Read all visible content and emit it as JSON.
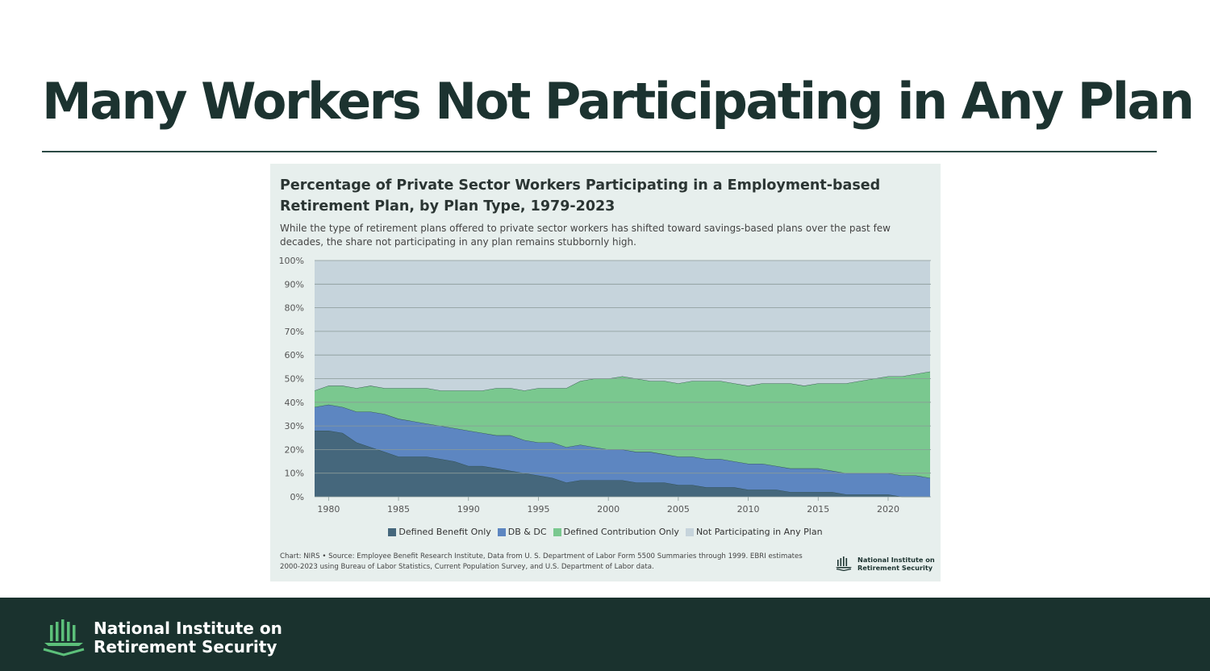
{
  "slide": {
    "title": "Many Workers Not Participating in Any Plan"
  },
  "colors": {
    "title_text": "#1c3330",
    "footer_bg": "#1a322e",
    "card_bg": "#e7efed",
    "logo_green": "#5cc07a"
  },
  "chart_data": {
    "type": "area",
    "stacked": true,
    "title": "Percentage of Private Sector Workers Participating in a Employment-based Retirement Plan, by Plan Type, 1979-2023",
    "subtitle": "While the type of retirement plans offered to private sector workers has shifted toward savings-based plans over the past few decades, the share not participating in any plan remains stubbornly high.",
    "xlabel": "",
    "ylabel": "",
    "xlim": [
      1979,
      2023
    ],
    "ylim": [
      0,
      100
    ],
    "x_ticks": [
      1980,
      1985,
      1990,
      1995,
      2000,
      2005,
      2010,
      2015,
      2020
    ],
    "x_tick_labels": [
      "1980",
      "1985",
      "1990",
      "1995",
      "2000",
      "2005",
      "2010",
      "2015",
      "2020"
    ],
    "y_ticks": [
      0,
      10,
      20,
      30,
      40,
      50,
      60,
      70,
      80,
      90,
      100
    ],
    "y_tick_labels": [
      "0%",
      "10%",
      "20%",
      "30%",
      "40%",
      "50%",
      "60%",
      "70%",
      "80%",
      "90%",
      "100%"
    ],
    "grid": true,
    "legend_position": "bottom",
    "x": [
      1979,
      1980,
      1981,
      1982,
      1983,
      1984,
      1985,
      1986,
      1987,
      1988,
      1989,
      1990,
      1991,
      1992,
      1993,
      1994,
      1995,
      1996,
      1997,
      1998,
      1999,
      2000,
      2001,
      2002,
      2003,
      2004,
      2005,
      2006,
      2007,
      2008,
      2009,
      2010,
      2011,
      2012,
      2013,
      2014,
      2015,
      2016,
      2017,
      2018,
      2019,
      2020,
      2021,
      2022,
      2023
    ],
    "series": [
      {
        "name": "Defined Benefit Only",
        "color": "#45677c",
        "values": [
          28,
          28,
          27,
          23,
          21,
          19,
          17,
          17,
          17,
          16,
          15,
          13,
          13,
          12,
          11,
          10,
          9,
          8,
          6,
          7,
          7,
          7,
          7,
          6,
          6,
          6,
          5,
          5,
          4,
          4,
          4,
          3,
          3,
          3,
          2,
          2,
          2,
          2,
          1,
          1,
          1,
          1,
          0,
          0,
          0
        ]
      },
      {
        "name": "DB & DC",
        "color": "#5d86c1",
        "values": [
          10,
          11,
          11,
          13,
          15,
          16,
          16,
          15,
          14,
          14,
          14,
          15,
          14,
          14,
          15,
          14,
          14,
          15,
          15,
          15,
          14,
          13,
          13,
          13,
          13,
          12,
          12,
          12,
          12,
          12,
          11,
          11,
          11,
          10,
          10,
          10,
          10,
          9,
          9,
          9,
          9,
          9,
          9,
          9,
          8
        ]
      },
      {
        "name": "Defined Contribution Only",
        "color": "#7ac88f",
        "values": [
          7,
          8,
          9,
          10,
          11,
          11,
          13,
          14,
          15,
          15,
          16,
          17,
          18,
          20,
          20,
          21,
          23,
          23,
          25,
          27,
          29,
          30,
          31,
          31,
          30,
          31,
          31,
          32,
          33,
          33,
          33,
          33,
          34,
          35,
          36,
          35,
          36,
          37,
          38,
          39,
          40,
          41,
          42,
          43,
          45
        ]
      },
      {
        "name": "Not Participating in Any Plan",
        "color": "#c6d4dc",
        "values": [
          55,
          53,
          53,
          54,
          53,
          54,
          54,
          54,
          54,
          55,
          55,
          55,
          55,
          54,
          54,
          55,
          54,
          54,
          54,
          51,
          50,
          50,
          49,
          50,
          51,
          51,
          52,
          51,
          51,
          51,
          52,
          53,
          52,
          52,
          52,
          53,
          52,
          52,
          52,
          51,
          50,
          49,
          49,
          48,
          47
        ]
      }
    ],
    "source": "Chart: NIRS • Source: Employee Benefit Research Institute, Data from U. S. Department of Labor Form 5500 Summaries through 1999. EBRI estimates 2000-2023 using Bureau of Labor Statistics, Current Population Survey, and U.S. Department of Labor data."
  },
  "card_logo": {
    "line1": "National Institute on",
    "line2": "Retirement Security"
  },
  "footer": {
    "line1": "National Institute on",
    "line2": "Retirement Security"
  }
}
